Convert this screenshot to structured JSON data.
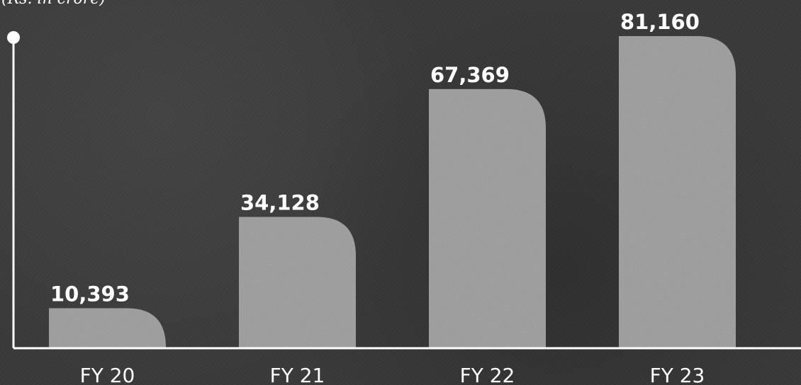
{
  "unit_note": "(Rs. in crore)",
  "chart_data": {
    "type": "bar",
    "categories": [
      "FY 20",
      "FY 21",
      "FY 22",
      "FY 23"
    ],
    "values": [
      10393,
      34128,
      67369,
      81160
    ],
    "value_labels": [
      "10,393",
      "34,128",
      "67,369",
      "81,160"
    ],
    "title": "",
    "xlabel": "",
    "ylabel": "",
    "ylim": [
      0,
      90000
    ],
    "grid": false,
    "legend": "none",
    "colors": {
      "bar": "#9a9a9a",
      "axis": "#ffffff",
      "text": "#ffffff"
    }
  }
}
